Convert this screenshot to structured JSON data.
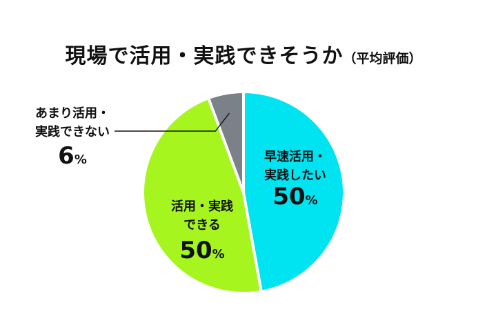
{
  "chart_data": {
    "type": "pie",
    "title": "現場で活用・実践できそうか",
    "subtitle": "（平均評価）",
    "unit": "%",
    "slices": [
      {
        "label_lines": [
          "早速活用・",
          "実践したい"
        ],
        "value": 50,
        "color": "#00e3f0"
      },
      {
        "label_lines": [
          "活用・実践",
          "できる"
        ],
        "value": 50,
        "color": "#a6f51e"
      },
      {
        "label_lines": [
          "あまり活用・",
          "実践できない"
        ],
        "value": 6,
        "color": "#7b8189"
      }
    ]
  }
}
